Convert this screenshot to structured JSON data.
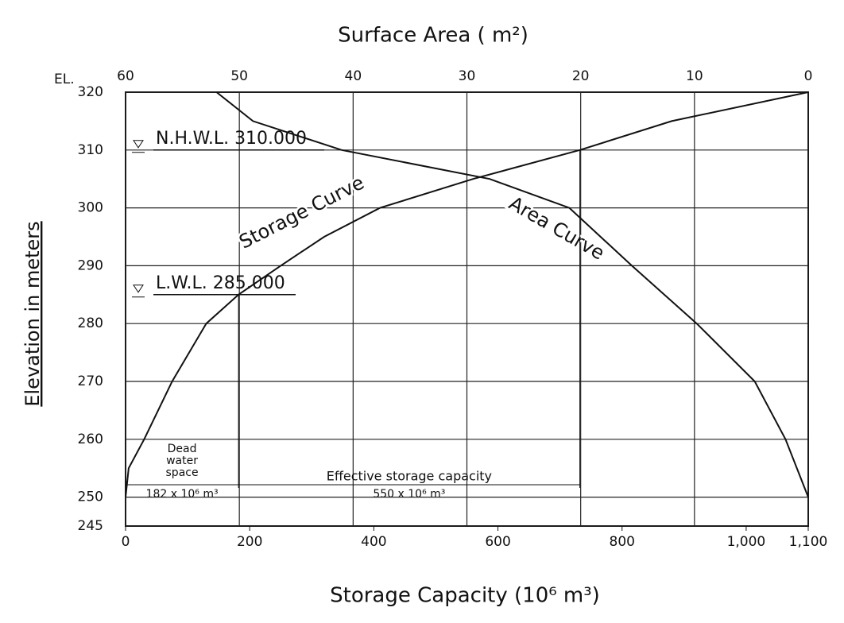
{
  "chart_data": {
    "type": "line",
    "title": "Surface Area ( m²)",
    "x_label": "Storage Capacity (10⁶ m³)",
    "y_label": "Elevation in meters",
    "y_unit": "EL.",
    "xlim": [
      0,
      1100
    ],
    "xticks": [
      0,
      200,
      400,
      600,
      800,
      {
        "value": 1000,
        "label": "1,000"
      },
      {
        "value": 1100,
        "label": "1,100"
      }
    ],
    "x2lim": [
      60,
      0
    ],
    "x2ticks": [
      60,
      50,
      40,
      30,
      20,
      10,
      0
    ],
    "ylim": [
      245,
      320
    ],
    "yticks": [
      245,
      250,
      260,
      270,
      280,
      290,
      300,
      310,
      320
    ],
    "grid": true,
    "series": [
      {
        "name": "Storage Curve",
        "color": "#111111",
        "axis": "x",
        "x": [
          0,
          5,
          30,
          75,
          130,
          182,
          250,
          320,
          410,
          560,
          732,
          880,
          1100
        ],
        "values": [
          250,
          255,
          260,
          270,
          280,
          285,
          290,
          295,
          300,
          305,
          310,
          315,
          320
        ]
      },
      {
        "name": "Area Curve",
        "color": "#111111",
        "axis": "x2",
        "x": [
          0,
          2,
          4.7,
          9.8,
          15.5,
          21,
          28,
          41,
          48.8,
          52
        ],
        "values": [
          250,
          260,
          270,
          280,
          290,
          300,
          305,
          310,
          315,
          320
        ]
      }
    ],
    "levels": [
      {
        "label": "N.H.W.L. 310.000",
        "value": 310
      },
      {
        "label": "L.W.L. 285.000",
        "value": 285
      }
    ],
    "dead_space": {
      "label": [
        "Dead",
        "water",
        "space"
      ],
      "value": 182,
      "value_label": "182 x 10⁶ m³"
    },
    "effective_storage": {
      "label": "Effective storage capacity",
      "value": 550,
      "value_label": "550 x 10⁶ m³"
    }
  }
}
